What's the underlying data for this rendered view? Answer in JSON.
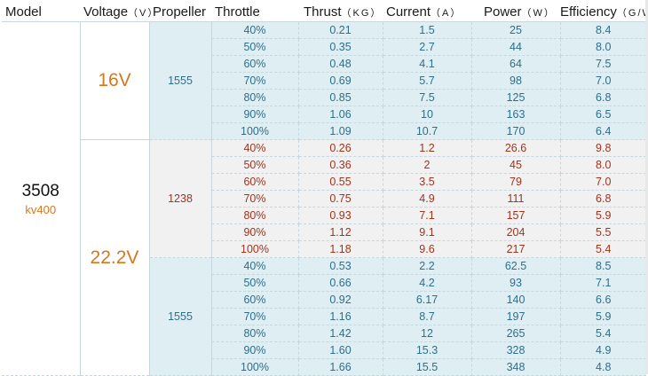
{
  "headers": {
    "model": "Model",
    "voltage": "Voltage",
    "voltage_unit": "（V）",
    "propeller": "Propeller",
    "throttle": "Throttle",
    "thrust": "Thrust",
    "thrust_unit": "（KG）",
    "current": "Current",
    "current_unit": "（A）",
    "power": "Power",
    "power_unit": "（W）",
    "efficiency": "Efficiency",
    "efficiency_unit": "（G/W）"
  },
  "model": {
    "name": "3508",
    "kv": "kv400"
  },
  "groups": [
    {
      "voltage": "16V",
      "propeller": "1555",
      "rows": [
        [
          "40%",
          "0.21",
          "1.5",
          "25",
          "8.4"
        ],
        [
          "50%",
          "0.35",
          "2.7",
          "44",
          "8.0"
        ],
        [
          "60%",
          "0.48",
          "4.1",
          "64",
          "7.5"
        ],
        [
          "70%",
          "0.69",
          "5.7",
          "98",
          "7.0"
        ],
        [
          "80%",
          "0.85",
          "7.5",
          "125",
          "6.8"
        ],
        [
          "90%",
          "1.06",
          "10",
          "163",
          "6.5"
        ],
        [
          "100%",
          "1.09",
          "10.7",
          "170",
          "6.4"
        ]
      ]
    },
    {
      "voltage": "22.2V",
      "propeller": "1238",
      "rows": [
        [
          "40%",
          "0.26",
          "1.2",
          "26.6",
          "9.8"
        ],
        [
          "50%",
          "0.36",
          "2",
          "45",
          "8.0"
        ],
        [
          "60%",
          "0.55",
          "3.5",
          "79",
          "7.0"
        ],
        [
          "70%",
          "0.75",
          "4.9",
          "111",
          "6.8"
        ],
        [
          "80%",
          "0.93",
          "7.1",
          "157",
          "5.9"
        ],
        [
          "90%",
          "1.12",
          "9.1",
          "204",
          "5.5"
        ],
        [
          "100%",
          "1.18",
          "9.6",
          "217",
          "5.4"
        ]
      ]
    },
    {
      "voltage": "22.2V",
      "propeller": "1555",
      "rows": [
        [
          "40%",
          "0.53",
          "2.2",
          "62.5",
          "8.5"
        ],
        [
          "50%",
          "0.66",
          "4.2",
          "93",
          "7.1"
        ],
        [
          "60%",
          "0.92",
          "6.17",
          "140",
          "6.6"
        ],
        [
          "70%",
          "1.16",
          "8.7",
          "197",
          "5.9"
        ],
        [
          "80%",
          "1.42",
          "12",
          "265",
          "5.4"
        ],
        [
          "90%",
          "1.60",
          "15.3",
          "328",
          "4.9"
        ],
        [
          "100%",
          "1.66",
          "15.5",
          "348",
          "4.8"
        ]
      ]
    }
  ],
  "colors": {
    "blue_band": "#deeef3",
    "blue_text": "#2d6f8a",
    "gray_band": "#f1f1f1",
    "red_text": "#a0341d",
    "accent_orange": "#d7771d"
  }
}
